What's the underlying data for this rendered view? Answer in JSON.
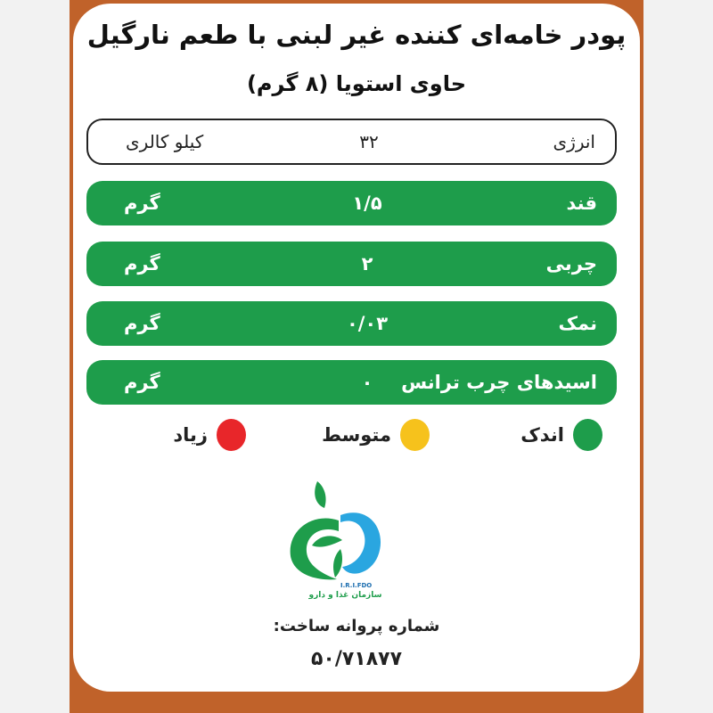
{
  "title": "پودر خامه‌ای کننده غیر لبنی با طعم نارگیل",
  "subtitle": "حاوی استویا (۸ گرم)",
  "energy": {
    "label": "انرژی",
    "value": "۳۲",
    "unit": "کیلو کالری"
  },
  "rows": [
    {
      "label": "قند",
      "value": "۱/۵",
      "unit": "گرم",
      "level": "low"
    },
    {
      "label": "چربی",
      "value": "۲",
      "unit": "گرم",
      "level": "low"
    },
    {
      "label": "نمک",
      "value": "۰/۰۳",
      "unit": "گرم",
      "level": "low"
    },
    {
      "label": "اسیدهای چرب ترانس",
      "value": "۰",
      "unit": "گرم",
      "level": "low"
    }
  ],
  "legend": [
    {
      "label": "اندک",
      "color": "#1e9d4b"
    },
    {
      "label": "متوسط",
      "color": "#f6c21c"
    },
    {
      "label": "زیاد",
      "color": "#e8262a"
    }
  ],
  "logo": {
    "latin": "I.R.I.FDO",
    "persian": "سازمان غذا و دارو"
  },
  "license": {
    "label": "شماره پروانه ساخت:",
    "number": "۵۰/۷۱۸۷۷"
  },
  "colors": {
    "frame": "#c0622a",
    "green": "#1e9d4b",
    "logo_blue": "#2aa6e0"
  }
}
